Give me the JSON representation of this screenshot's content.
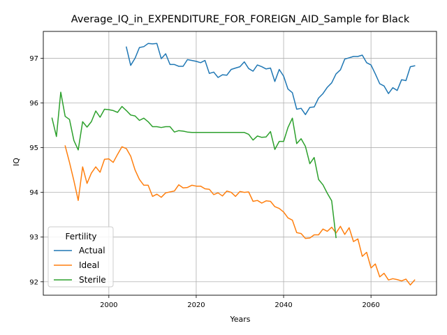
{
  "chart_data": {
    "type": "line",
    "title": "Average_IQ_in_EXPENDITURE_FOR_FOREIGN_AID_Sample for Black",
    "xlabel": "Years",
    "ylabel": "IQ",
    "xlim": [
      1985,
      2075
    ],
    "ylim": [
      91.7,
      97.6
    ],
    "xticks": [
      2000,
      2020,
      2040,
      2060
    ],
    "yticks": [
      92,
      93,
      94,
      95,
      96,
      97
    ],
    "grid": true,
    "legend": {
      "title": "Fertility",
      "placement": "lower-left"
    },
    "series": [
      {
        "name": "Actual",
        "color": "#1f77b4",
        "x": [
          2004,
          2005,
          2006,
          2007,
          2008,
          2009,
          2010,
          2011,
          2012,
          2013,
          2014,
          2015,
          2016,
          2017,
          2018,
          2019,
          2020,
          2021,
          2022,
          2023,
          2024,
          2025,
          2026,
          2027,
          2028,
          2029,
          2030,
          2031,
          2032,
          2033,
          2034,
          2035,
          2036,
          2037,
          2038,
          2039,
          2040,
          2041,
          2042,
          2043,
          2044,
          2045,
          2046,
          2047,
          2048,
          2049,
          2050,
          2051,
          2052,
          2053,
          2054,
          2055,
          2056,
          2057,
          2058,
          2059,
          2060,
          2061,
          2062,
          2063,
          2064,
          2065,
          2066,
          2067,
          2068,
          2069,
          2070
        ],
        "y": [
          97.25,
          96.84,
          97.0,
          97.24,
          97.26,
          97.33,
          97.32,
          97.33,
          96.99,
          97.1,
          96.86,
          96.86,
          96.82,
          96.82,
          96.97,
          96.95,
          96.93,
          96.9,
          96.95,
          96.66,
          96.69,
          96.57,
          96.63,
          96.62,
          96.75,
          96.78,
          96.81,
          96.92,
          96.77,
          96.71,
          96.85,
          96.81,
          96.76,
          96.78,
          96.48,
          96.75,
          96.6,
          96.31,
          96.23,
          95.86,
          95.88,
          95.74,
          95.9,
          95.91,
          96.11,
          96.21,
          96.35,
          96.45,
          96.65,
          96.74,
          96.98,
          97.01,
          97.04,
          97.04,
          97.07,
          96.9,
          96.85,
          96.65,
          96.43,
          96.38,
          96.21,
          96.34,
          96.28,
          96.52,
          96.5,
          96.81,
          96.83
        ]
      },
      {
        "name": "Ideal",
        "color": "#ff7f0e",
        "x": [
          1990,
          1991,
          1992,
          1993,
          1994,
          1995,
          1996,
          1997,
          1998,
          1999,
          2000,
          2001,
          2002,
          2003,
          2004,
          2005,
          2006,
          2007,
          2008,
          2009,
          2010,
          2011,
          2012,
          2013,
          2014,
          2015,
          2016,
          2017,
          2018,
          2019,
          2020,
          2021,
          2022,
          2023,
          2024,
          2025,
          2026,
          2027,
          2028,
          2029,
          2030,
          2031,
          2032,
          2033,
          2034,
          2035,
          2036,
          2037,
          2038,
          2039,
          2040,
          2041,
          2042,
          2043,
          2044,
          2045,
          2046,
          2047,
          2048,
          2049,
          2050,
          2051,
          2052,
          2053,
          2054,
          2055,
          2056,
          2057,
          2058,
          2059,
          2060,
          2061,
          2062,
          2063,
          2064,
          2065,
          2066,
          2067,
          2068,
          2069,
          2070
        ],
        "y": [
          95.04,
          94.67,
          94.26,
          93.82,
          94.57,
          94.2,
          94.43,
          94.57,
          94.45,
          94.74,
          94.75,
          94.67,
          94.85,
          95.02,
          94.98,
          94.81,
          94.5,
          94.29,
          94.16,
          94.16,
          93.91,
          93.96,
          93.89,
          93.99,
          94.01,
          94.03,
          94.17,
          94.1,
          94.11,
          94.16,
          94.14,
          94.14,
          94.08,
          94.07,
          93.95,
          93.99,
          93.92,
          94.03,
          94.0,
          93.91,
          94.02,
          94.0,
          94.01,
          93.8,
          93.82,
          93.76,
          93.81,
          93.8,
          93.68,
          93.64,
          93.56,
          93.43,
          93.38,
          93.1,
          93.08,
          92.97,
          92.98,
          93.05,
          93.05,
          93.18,
          93.13,
          93.22,
          93.09,
          93.24,
          93.06,
          93.21,
          92.9,
          92.96,
          92.57,
          92.66,
          92.31,
          92.4,
          92.11,
          92.19,
          92.04,
          92.07,
          92.05,
          92.02,
          92.06,
          91.93,
          92.04
        ]
      },
      {
        "name": "Sterile",
        "color": "#2ca02c",
        "x": [
          1987,
          1988,
          1989,
          1990,
          1991,
          1992,
          1993,
          1994,
          1995,
          1996,
          1997,
          1998,
          1999,
          2000,
          2001,
          2002,
          2003,
          2004,
          2005,
          2006,
          2007,
          2008,
          2009,
          2010,
          2011,
          2012,
          2013,
          2014,
          2015,
          2016,
          2017,
          2018,
          2019,
          2020,
          2021,
          2022,
          2023,
          2024,
          2025,
          2026,
          2027,
          2028,
          2029,
          2030,
          2031,
          2032,
          2033,
          2034,
          2035,
          2036,
          2037,
          2038,
          2039,
          2040,
          2041,
          2042,
          2043,
          2044,
          2045,
          2046,
          2047,
          2048,
          2049,
          2050,
          2051,
          2052
        ],
        "y": [
          95.66,
          95.25,
          96.24,
          95.7,
          95.63,
          95.16,
          94.95,
          95.58,
          95.46,
          95.58,
          95.82,
          95.68,
          95.86,
          95.85,
          95.83,
          95.79,
          95.92,
          95.83,
          95.73,
          95.71,
          95.61,
          95.66,
          95.58,
          95.47,
          95.47,
          95.45,
          95.47,
          95.47,
          95.35,
          95.38,
          95.37,
          95.35,
          95.34,
          95.34,
          95.34,
          95.34,
          95.34,
          95.34,
          95.34,
          95.34,
          95.34,
          95.34,
          95.34,
          95.34,
          95.34,
          95.3,
          95.17,
          95.26,
          95.23,
          95.24,
          95.36,
          94.96,
          95.14,
          95.14,
          95.45,
          95.66,
          95.09,
          95.2,
          95.03,
          94.64,
          94.78,
          94.29,
          94.17,
          93.98,
          93.81,
          92.99
        ]
      }
    ]
  }
}
